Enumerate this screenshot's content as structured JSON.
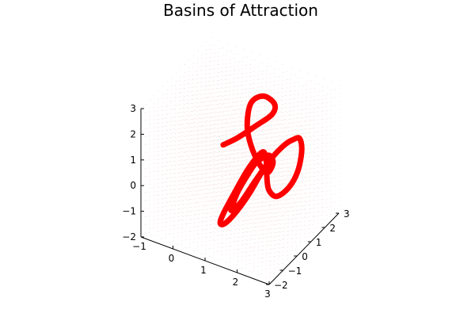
{
  "chart_data": {
    "type": "scatter",
    "projection": "3d",
    "title": "Basins of Attraction",
    "xlabel": "",
    "ylabel": "",
    "zlabel": "",
    "xlim": [
      -1,
      3
    ],
    "ylim": [
      -2,
      3
    ],
    "zlim": [
      -2,
      3
    ],
    "x_ticks": [
      -1,
      0,
      1,
      2,
      3
    ],
    "y_ticks": [
      -2,
      -1,
      0,
      1,
      2,
      3
    ],
    "z_ticks": [
      -2,
      -1,
      0,
      1,
      2,
      3
    ],
    "grid": false,
    "legend": "none",
    "background_points": "dense regular lattice of faint red points filling the cube",
    "series": [
      {
        "color": "#ff0000",
        "description": "attractor trajectory loop",
        "points": [
          [
            0.0,
            1.6,
            0.05
          ],
          [
            0.4,
            1.7,
            0.45
          ],
          [
            0.9,
            1.9,
            1.05
          ],
          [
            1.3,
            2.1,
            1.55
          ],
          [
            1.3,
            2.3,
            1.85
          ],
          [
            0.95,
            2.3,
            2.0
          ],
          [
            0.65,
            2.1,
            1.7
          ],
          [
            0.75,
            1.6,
            1.15
          ],
          [
            1.0,
            1.3,
            0.65
          ],
          [
            1.35,
            1.1,
            0.2
          ],
          [
            1.55,
            1.2,
            -0.1
          ],
          [
            1.6,
            1.5,
            0.15
          ],
          [
            1.5,
            1.4,
            0.45
          ],
          [
            1.3,
            1.0,
            0.3
          ],
          [
            1.15,
            0.7,
            -0.1
          ],
          [
            1.0,
            0.4,
            -0.6
          ],
          [
            0.95,
            0.1,
            -1.0
          ],
          [
            1.0,
            -0.1,
            -1.1
          ],
          [
            1.2,
            0.1,
            -0.8
          ],
          [
            1.45,
            0.6,
            -0.1
          ],
          [
            1.7,
            1.1,
            0.55
          ],
          [
            1.95,
            1.5,
            1.0
          ],
          [
            2.15,
            1.7,
            1.2
          ],
          [
            2.3,
            1.8,
            1.25
          ],
          [
            2.45,
            1.6,
            0.95
          ],
          [
            2.5,
            1.2,
            0.4
          ],
          [
            2.4,
            0.8,
            -0.05
          ],
          [
            2.15,
            0.5,
            -0.35
          ],
          [
            1.9,
            0.5,
            -0.2
          ],
          [
            1.75,
            0.7,
            0.2
          ],
          [
            1.65,
            0.9,
            0.55
          ],
          [
            1.55,
            0.95,
            0.85
          ],
          [
            1.45,
            0.7,
            0.75
          ],
          [
            1.3,
            0.3,
            0.35
          ],
          [
            1.15,
            -0.2,
            -0.25
          ],
          [
            1.0,
            -0.6,
            -0.85
          ],
          [
            0.95,
            -0.8,
            -1.2
          ],
          [
            1.05,
            -0.7,
            -1.25
          ],
          [
            1.25,
            -0.3,
            -0.9
          ],
          [
            1.45,
            0.2,
            -0.35
          ],
          [
            1.6,
            0.6,
            0.2
          ],
          [
            1.7,
            0.7,
            0.4
          ],
          [
            1.8,
            0.9,
            0.75
          ]
        ]
      }
    ]
  }
}
